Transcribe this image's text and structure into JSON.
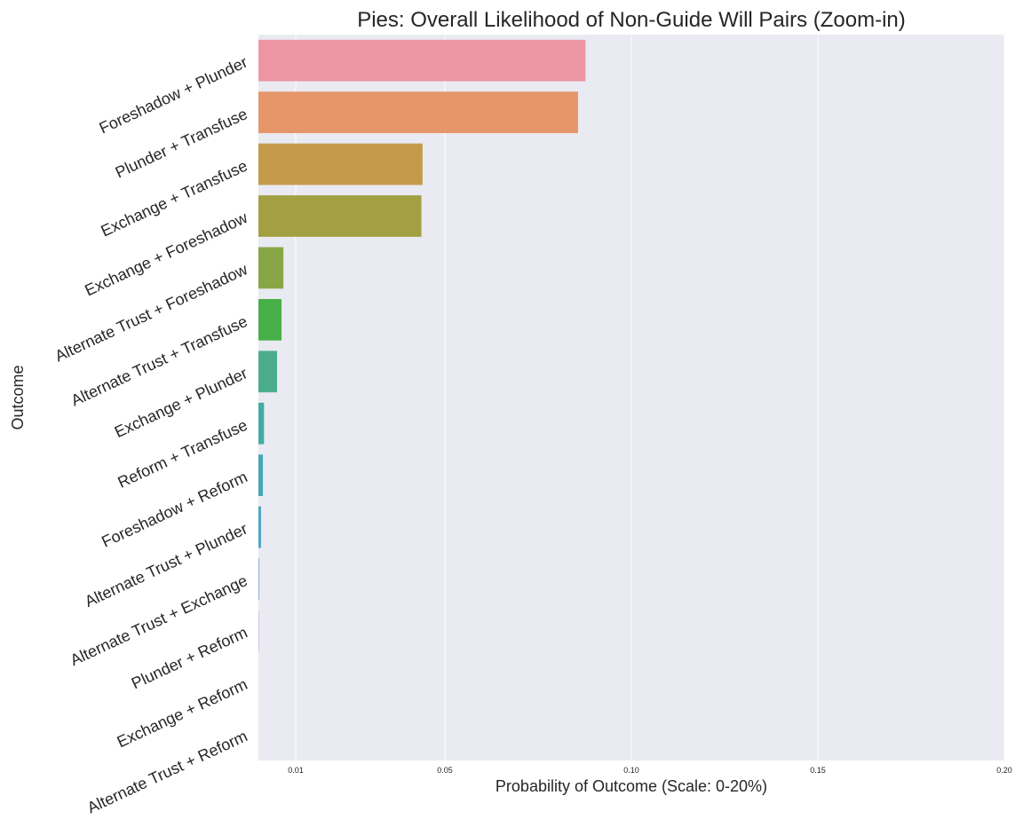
{
  "chart_data": {
    "type": "bar",
    "orientation": "horizontal",
    "title": "Pies: Overall Likelihood of Non-Guide Will Pairs (Zoom-in)",
    "xlabel": "Probability of Outcome (Scale: 0-20%)",
    "ylabel": "Outcome",
    "xlim": [
      0,
      0.2
    ],
    "xticks": [
      {
        "value": 0.01,
        "label": "0.01"
      },
      {
        "value": 0.05,
        "label": "0.05"
      },
      {
        "value": 0.1,
        "label": "0.10"
      },
      {
        "value": 0.15,
        "label": "0.15"
      },
      {
        "value": 0.2,
        "label": "0.20"
      }
    ],
    "grid": true,
    "categories": [
      "Foreshadow + Plunder",
      "Plunder + Transfuse",
      "Exchange + Transfuse",
      "Exchange + Foreshadow",
      "Alternate Trust + Foreshadow",
      "Alternate Trust + Transfuse",
      "Exchange + Plunder",
      "Reform + Transfuse",
      "Foreshadow + Reform",
      "Alternate Trust + Plunder",
      "Alternate Trust + Exchange",
      "Plunder + Reform",
      "Exchange + Reform",
      "Alternate Trust + Reform"
    ],
    "values": [
      0.0877,
      0.0857,
      0.044,
      0.0437,
      0.0067,
      0.0062,
      0.005,
      0.0015,
      0.0012,
      0.0007,
      0.0002,
      0.0001,
      0.0,
      0.0
    ],
    "colors": [
      "#ee96a3",
      "#e6966a",
      "#c49b4a",
      "#a3a043",
      "#88a645",
      "#48b049",
      "#4bad8c",
      "#42aba3",
      "#44a9b5",
      "#4aa6c6",
      "#7a9ee0",
      "#a999e6",
      "#d592e2",
      "#e98fc4"
    ],
    "plot_background": "#eaeaf2"
  }
}
